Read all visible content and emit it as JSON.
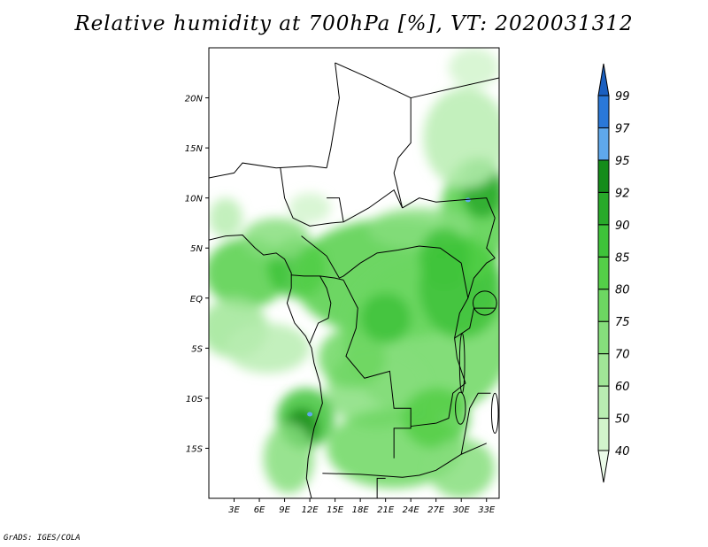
{
  "title": "Relative humidity at 700hPa [%], VT: 2020031312",
  "credit": "GrADS: IGES/COLA",
  "map": {
    "lon_range": [
      0,
      34.5
    ],
    "lat_range": [
      -20,
      25
    ],
    "lon_ticks": [
      "3E",
      "6E",
      "9E",
      "12E",
      "15E",
      "18E",
      "21E",
      "24E",
      "27E",
      "30E",
      "33E"
    ],
    "lat_ticks": [
      "20N",
      "15N",
      "10N",
      "5N",
      "EQ",
      "5S",
      "10S",
      "15S"
    ],
    "ocean_fill": "#ffffff",
    "land_fill": "#ffffff",
    "border_color": "#000000"
  },
  "colorbar": {
    "levels": [
      "40",
      "50",
      "60",
      "70",
      "75",
      "80",
      "85",
      "90",
      "92",
      "95",
      "97",
      "99"
    ],
    "colors": [
      "#ebfbe8",
      "#d2f4cc",
      "#b9edb2",
      "#a0e697",
      "#86de7c",
      "#6dd762",
      "#54cf48",
      "#3ec33a",
      "#28aa2a",
      "#148c1a",
      "#5fa8ec",
      "#2a78d8",
      "#1a5fc0"
    ]
  },
  "humidity_blobs": [
    {
      "lon": 4.5,
      "lat": 2.5,
      "rx": 5.0,
      "ry": 3.5,
      "level": 6
    },
    {
      "lon": 10.5,
      "lat": 3.0,
      "rx": 3.5,
      "ry": 3.0,
      "level": 7
    },
    {
      "lon": 8.0,
      "lat": 6.0,
      "rx": 4.0,
      "ry": 2.0,
      "level": 4
    },
    {
      "lon": 3.0,
      "lat": -3.0,
      "rx": 4.0,
      "ry": 3.0,
      "level": 3
    },
    {
      "lon": 7.0,
      "lat": -5.0,
      "rx": 5.0,
      "ry": 2.5,
      "level": 2
    },
    {
      "lon": 22.0,
      "lat": 2.0,
      "rx": 12.0,
      "ry": 6.0,
      "level": 6
    },
    {
      "lon": 26.0,
      "lat": -4.0,
      "rx": 10.0,
      "ry": 8.0,
      "level": 5
    },
    {
      "lon": 30.0,
      "lat": 1.0,
      "rx": 5.0,
      "ry": 5.0,
      "level": 7
    },
    {
      "lon": 31.5,
      "lat": 8.0,
      "rx": 4.0,
      "ry": 6.0,
      "level": 6
    },
    {
      "lon": 32.5,
      "lat": 11.0,
      "rx": 2.5,
      "ry": 3.0,
      "level": 8
    },
    {
      "lon": 30.5,
      "lat": 16.0,
      "rx": 5.0,
      "ry": 5.0,
      "level": 2
    },
    {
      "lon": 31.5,
      "lat": 23.0,
      "rx": 3.0,
      "ry": 2.0,
      "level": 1
    },
    {
      "lon": 20.0,
      "lat": -9.0,
      "rx": 6.0,
      "ry": 4.0,
      "level": 4
    },
    {
      "lon": 17.0,
      "lat": -6.0,
      "rx": 4.0,
      "ry": 3.0,
      "level": 5
    },
    {
      "lon": 11.5,
      "lat": -12.0,
      "rx": 3.5,
      "ry": 3.0,
      "level": 7
    },
    {
      "lon": 11.0,
      "lat": -13.0,
      "rx": 2.0,
      "ry": 2.0,
      "level": 9
    },
    {
      "lon": 9.5,
      "lat": -16.0,
      "rx": 3.0,
      "ry": 3.5,
      "level": 4
    },
    {
      "lon": 22.0,
      "lat": -15.0,
      "rx": 8.0,
      "ry": 4.0,
      "level": 5
    },
    {
      "lon": 27.0,
      "lat": -12.0,
      "rx": 4.0,
      "ry": 3.0,
      "level": 6
    },
    {
      "lon": 30.0,
      "lat": -17.0,
      "rx": 4.0,
      "ry": 3.0,
      "level": 4
    },
    {
      "lon": 25.0,
      "lat": 7.0,
      "rx": 6.0,
      "ry": 2.0,
      "level": 4
    },
    {
      "lon": 2.0,
      "lat": 8.0,
      "rx": 2.0,
      "ry": 2.0,
      "level": 2
    },
    {
      "lon": 12.0,
      "lat": 9.0,
      "rx": 2.5,
      "ry": 1.5,
      "level": 1
    },
    {
      "lon": 28.0,
      "lat": 4.0,
      "rx": 3.0,
      "ry": 3.0,
      "level": 7
    },
    {
      "lon": 21.0,
      "lat": -2.0,
      "rx": 3.0,
      "ry": 2.5,
      "level": 7
    }
  ],
  "blue_spots": [
    {
      "lon": 30.8,
      "lat": 9.8
    },
    {
      "lon": 12.0,
      "lat": -11.6
    }
  ]
}
